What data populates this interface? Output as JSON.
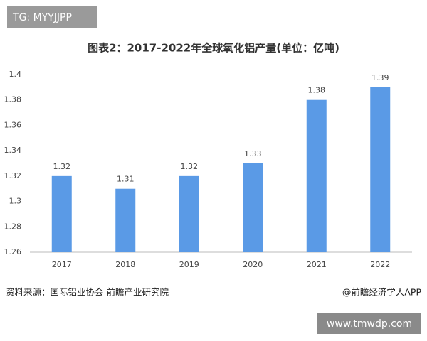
{
  "chart_data": {
    "type": "bar",
    "title": "图表2：2017-2022年全球氧化铝产量(单位：亿吨)",
    "categories": [
      "2017",
      "2018",
      "2019",
      "2020",
      "2021",
      "2022"
    ],
    "values": [
      1.32,
      1.31,
      1.32,
      1.33,
      1.38,
      1.39
    ],
    "color": "#5a9ae6",
    "ylim": [
      1.26,
      1.4
    ],
    "yticks": [
      1.26,
      1.28,
      1.3,
      1.32,
      1.34,
      1.36,
      1.38,
      1.4
    ],
    "grid": false,
    "source": "资料来源：国际铝业协会 前瞻产业研究院",
    "credit": "@前瞻经济学人APP"
  },
  "overlay": {
    "tag": "TG: MYYJJPP",
    "website": "www.tmwdp.com"
  }
}
